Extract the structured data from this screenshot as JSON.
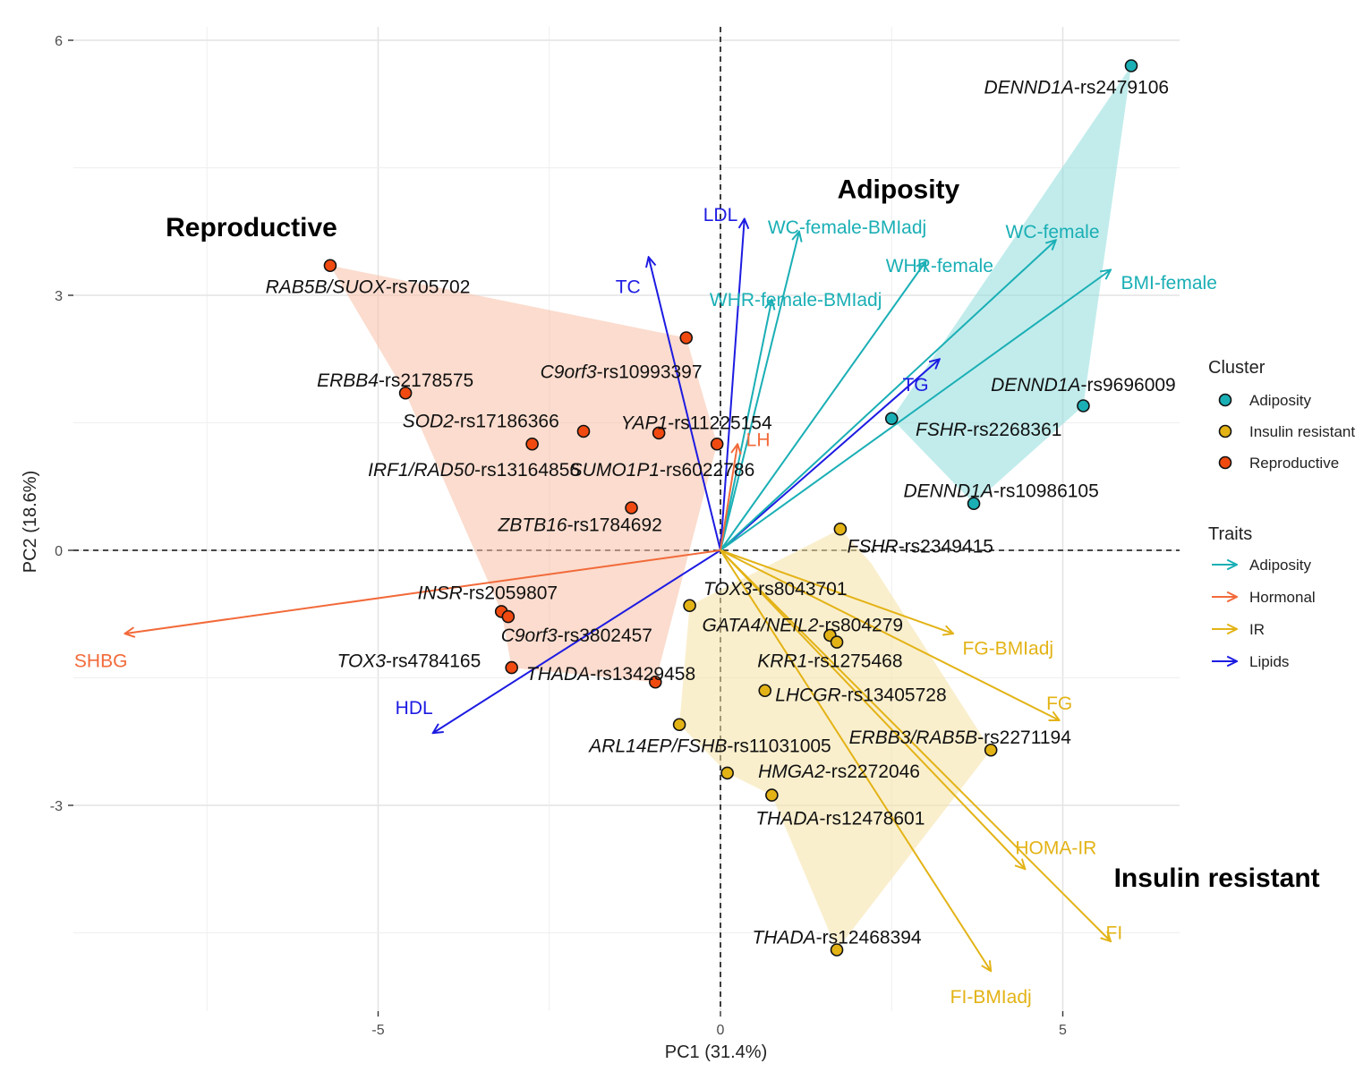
{
  "chart_data": {
    "type": "scatter",
    "subtype": "pca-biplot",
    "xlabel": "PC1 (31.4%)",
    "ylabel": "PC2 (18.6%)",
    "xlim": [
      -9.5,
      6.9
    ],
    "ylim": [
      -5.4,
      6.3
    ],
    "xticks": [
      -5,
      0,
      5
    ],
    "xtick_labels": [
      "-5",
      "0",
      "5"
    ],
    "yticks": [
      -3,
      0,
      3,
      6
    ],
    "ytick_labels": [
      "-3",
      "0",
      "3",
      "6"
    ],
    "grid": true,
    "reference_lines": {
      "x": 0,
      "y": 0,
      "style": "dashed"
    },
    "cluster_colors": {
      "Adiposity": "#1aafb5",
      "Insulin resistant": "#e3b316",
      "Reproductive": "#f04a10"
    },
    "hull_colors": {
      "Adiposity": "#8fdcdc",
      "Insulin resistant": "#f6e1a4",
      "Reproductive": "#f7bfa5"
    },
    "trait_colors": {
      "Adiposity": "#1aafb5",
      "Hormonal": "#f26a3a",
      "IR": "#e3b316",
      "Lipids": "#1d1be2"
    },
    "cluster_titles": [
      {
        "text": "Reproductive",
        "x": -6.85,
        "y": 3.8
      },
      {
        "text": "Adiposity",
        "x": 2.6,
        "y": 4.25
      },
      {
        "text": "Insulin resistant",
        "x": 7.25,
        "y": -3.85
      }
    ],
    "points": [
      {
        "cluster": "Adiposity",
        "gene": "DENND1A",
        "snp": "-rs2479106",
        "x": 6.0,
        "y": 5.7,
        "lx": 5.2,
        "ly": 5.45,
        "anchor": "middle"
      },
      {
        "cluster": "Adiposity",
        "gene": "DENND1A",
        "snp": "-rs9696009",
        "x": 5.3,
        "y": 1.7,
        "lx": 5.3,
        "ly": 1.95,
        "anchor": "middle"
      },
      {
        "cluster": "Adiposity",
        "gene": "FSHR",
        "snp": "-rs2268361",
        "x": 2.5,
        "y": 1.55,
        "lx": 2.85,
        "ly": 1.42,
        "anchor": "start"
      },
      {
        "cluster": "Adiposity",
        "gene": "DENND1A",
        "snp": "-rs10986105",
        "x": 3.7,
        "y": 0.55,
        "lx": 4.1,
        "ly": 0.7,
        "anchor": "middle"
      },
      {
        "cluster": "Reproductive",
        "gene": "RAB5B/SUOX",
        "snp": "-rs705702",
        "x": -5.7,
        "y": 3.35,
        "lx": -5.15,
        "ly": 3.1,
        "anchor": "middle"
      },
      {
        "cluster": "Reproductive",
        "gene": "C9orf3",
        "snp": "-rs10993397",
        "x": -0.5,
        "y": 2.5,
        "lx": -1.45,
        "ly": 2.1,
        "anchor": "middle"
      },
      {
        "cluster": "Reproductive",
        "gene": "ERBB4",
        "snp": "-rs2178575",
        "x": -4.6,
        "y": 1.85,
        "lx": -4.75,
        "ly": 2.0,
        "anchor": "middle"
      },
      {
        "cluster": "Reproductive",
        "gene": "SOD2",
        "snp": "-rs17186366",
        "x": -2.0,
        "y": 1.4,
        "lx": -3.5,
        "ly": 1.52,
        "anchor": "middle"
      },
      {
        "cluster": "Reproductive",
        "gene": "YAP1",
        "snp": "-rs11225154",
        "x": -0.9,
        "y": 1.38,
        "lx": -0.35,
        "ly": 1.5,
        "anchor": "middle"
      },
      {
        "cluster": "Reproductive",
        "gene": "IRF1/RAD50",
        "snp": "-rs13164856",
        "x": -2.75,
        "y": 1.25,
        "lx": -3.6,
        "ly": 0.95,
        "anchor": "middle"
      },
      {
        "cluster": "Reproductive",
        "gene": "SUMO1P1",
        "snp": "-rs6022786",
        "x": -0.05,
        "y": 1.25,
        "lx": -0.85,
        "ly": 0.95,
        "anchor": "middle"
      },
      {
        "cluster": "Reproductive",
        "gene": "ZBTB16",
        "snp": "-rs1784692",
        "x": -1.3,
        "y": 0.5,
        "lx": -2.05,
        "ly": 0.3,
        "anchor": "middle"
      },
      {
        "cluster": "Reproductive",
        "gene": "INSR",
        "snp": "-rs2059807",
        "x": -3.2,
        "y": -0.72,
        "lx": -3.4,
        "ly": -0.5,
        "anchor": "middle"
      },
      {
        "cluster": "Reproductive",
        "gene": "C9orf3",
        "snp": "-rs3802457",
        "x": -3.1,
        "y": -0.78,
        "lx": -2.1,
        "ly": -1.0,
        "anchor": "middle"
      },
      {
        "cluster": "Reproductive",
        "gene": "TOX3",
        "snp": "-rs4784165",
        "x": -3.05,
        "y": -1.38,
        "lx": -4.55,
        "ly": -1.3,
        "anchor": "middle"
      },
      {
        "cluster": "Reproductive",
        "gene": "THADA",
        "snp": "-rs13429458",
        "x": -0.95,
        "y": -1.55,
        "lx": -1.6,
        "ly": -1.45,
        "anchor": "middle"
      },
      {
        "cluster": "Insulin resistant",
        "gene": "FSHR",
        "snp": "-rs2349415",
        "x": 1.75,
        "y": 0.25,
        "lx": 1.85,
        "ly": 0.05,
        "anchor": "start"
      },
      {
        "cluster": "Insulin resistant",
        "gene": "TOX3",
        "snp": "-rs8043701",
        "x": -0.45,
        "y": -0.65,
        "lx": 0.8,
        "ly": -0.45,
        "anchor": "middle"
      },
      {
        "cluster": "Insulin resistant",
        "gene": "GATA4/NEIL2",
        "snp": "-rs804279",
        "x": 1.6,
        "y": -1.0,
        "lx": 1.2,
        "ly": -0.88,
        "anchor": "middle"
      },
      {
        "cluster": "Insulin resistant",
        "gene": "KRR1",
        "snp": "-rs1275468",
        "x": 1.7,
        "y": -1.08,
        "lx": 1.6,
        "ly": -1.3,
        "anchor": "middle"
      },
      {
        "cluster": "Insulin resistant",
        "gene": "LHCGR",
        "snp": "-rs13405728",
        "x": 0.65,
        "y": -1.65,
        "lx": 0.8,
        "ly": -1.7,
        "anchor": "start"
      },
      {
        "cluster": "Insulin resistant",
        "gene": "ARL14EP/FSHB",
        "snp": "-rs11031005",
        "x": -0.6,
        "y": -2.05,
        "lx": -0.15,
        "ly": -2.3,
        "anchor": "middle"
      },
      {
        "cluster": "Insulin resistant",
        "gene": "ERBB3/RAB5B",
        "snp": "-rs2271194",
        "x": 3.95,
        "y": -2.35,
        "lx": 3.5,
        "ly": -2.2,
        "anchor": "middle"
      },
      {
        "cluster": "Insulin resistant",
        "gene": "HMGA2",
        "snp": "-rs2272046",
        "x": 0.1,
        "y": -2.62,
        "lx": 0.55,
        "ly": -2.6,
        "anchor": "start"
      },
      {
        "cluster": "Insulin resistant",
        "gene": "THADA",
        "snp": "-rs12478601",
        "x": 0.75,
        "y": -2.88,
        "lx": 1.75,
        "ly": -3.15,
        "anchor": "middle"
      },
      {
        "cluster": "Insulin resistant",
        "gene": "THADA",
        "snp": "-rs12468394",
        "x": 1.7,
        "y": -4.7,
        "lx": 1.7,
        "ly": -4.55,
        "anchor": "middle"
      }
    ],
    "hulls": [
      {
        "cluster": "Reproductive",
        "points": [
          [
            -5.7,
            3.35
          ],
          [
            -0.5,
            2.5
          ],
          [
            -0.05,
            1.25
          ],
          [
            -0.95,
            -1.55
          ],
          [
            -3.05,
            -1.38
          ],
          [
            -3.2,
            -0.72
          ],
          [
            -4.6,
            1.85
          ]
        ]
      },
      {
        "cluster": "Adiposity",
        "points": [
          [
            6.0,
            5.7
          ],
          [
            5.3,
            1.7
          ],
          [
            3.7,
            0.55
          ],
          [
            2.5,
            1.55
          ]
        ]
      },
      {
        "cluster": "Insulin resistant",
        "points": [
          [
            1.75,
            0.25
          ],
          [
            2.2,
            -0.15
          ],
          [
            3.95,
            -2.35
          ],
          [
            1.7,
            -4.7
          ],
          [
            0.75,
            -2.88
          ],
          [
            0.1,
            -2.62
          ],
          [
            -0.6,
            -2.05
          ],
          [
            -0.45,
            -0.65
          ]
        ]
      }
    ],
    "traits": [
      {
        "name": "LDL",
        "group": "Lipids",
        "x": 0.35,
        "y": 3.9,
        "lx": 0.0,
        "ly": 3.95,
        "anchor": "middle"
      },
      {
        "name": "TC",
        "group": "Lipids",
        "x": -1.05,
        "y": 3.45,
        "lx": -1.35,
        "ly": 3.1,
        "anchor": "middle"
      },
      {
        "name": "TG",
        "group": "Lipids",
        "x": 3.2,
        "y": 2.25,
        "lx": 2.85,
        "ly": 1.95,
        "anchor": "middle"
      },
      {
        "name": "HDL",
        "group": "Lipids",
        "x": -4.2,
        "y": -2.15,
        "lx": -4.2,
        "ly": -1.85,
        "anchor": "end"
      },
      {
        "name": "WC-female-BMIadj",
        "group": "Adiposity",
        "x": 1.15,
        "y": 3.75,
        "lx": 1.85,
        "ly": 3.8,
        "anchor": "middle"
      },
      {
        "name": "WHR-female",
        "group": "Adiposity",
        "x": 3.0,
        "y": 3.4,
        "lx": 3.2,
        "ly": 3.35,
        "anchor": "middle"
      },
      {
        "name": "WC-female",
        "group": "Adiposity",
        "x": 4.9,
        "y": 3.65,
        "lx": 4.85,
        "ly": 3.75,
        "anchor": "middle"
      },
      {
        "name": "BMI-female",
        "group": "Adiposity",
        "x": 5.7,
        "y": 3.3,
        "lx": 5.85,
        "ly": 3.15,
        "anchor": "start"
      },
      {
        "name": "WHR-female-BMIadj",
        "group": "Adiposity",
        "x": 0.75,
        "y": 2.95,
        "lx": 1.1,
        "ly": 2.95,
        "anchor": "middle"
      },
      {
        "name": "LH",
        "group": "Hormonal",
        "x": 0.25,
        "y": 1.25,
        "lx": 0.55,
        "ly": 1.3,
        "anchor": "middle"
      },
      {
        "name": "SHBG",
        "group": "Hormonal",
        "x": -8.7,
        "y": -0.98,
        "lx": -9.05,
        "ly": -1.3,
        "anchor": "middle"
      },
      {
        "name": "FG-BMIadj",
        "group": "IR",
        "x": 3.4,
        "y": -0.98,
        "lx": 4.2,
        "ly": -1.15,
        "anchor": "middle"
      },
      {
        "name": "FG",
        "group": "IR",
        "x": 4.95,
        "y": -2.0,
        "lx": 4.95,
        "ly": -1.8,
        "anchor": "middle"
      },
      {
        "name": "HOMA-IR",
        "group": "IR",
        "x": 4.45,
        "y": -3.75,
        "lx": 4.9,
        "ly": -3.5,
        "anchor": "middle"
      },
      {
        "name": "FI",
        "group": "IR",
        "x": 5.7,
        "y": -4.6,
        "lx": 5.75,
        "ly": -4.5,
        "anchor": "middle"
      },
      {
        "name": "FI-BMIadj",
        "group": "IR",
        "x": 3.95,
        "y": -4.95,
        "lx": 3.95,
        "ly": -5.25,
        "anchor": "middle"
      }
    ],
    "legend": {
      "position": "right",
      "cluster_title": "Cluster",
      "cluster_items": [
        "Adiposity",
        "Insulin resistant",
        "Reproductive"
      ],
      "traits_title": "Traits",
      "trait_items": [
        "Adiposity",
        "Hormonal",
        "IR",
        "Lipids"
      ]
    }
  }
}
